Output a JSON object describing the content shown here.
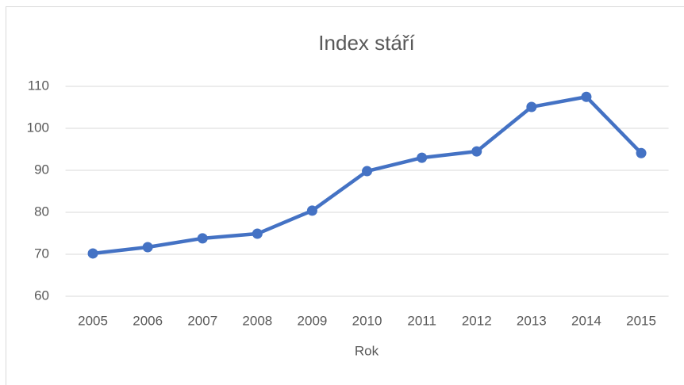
{
  "chart_data": {
    "type": "line",
    "title": "Index stáří",
    "x_label": "Rok",
    "categories": [
      "2005",
      "2006",
      "2007",
      "2008",
      "2009",
      "2010",
      "2011",
      "2012",
      "2013",
      "2014",
      "2015"
    ],
    "values": [
      70.2,
      71.7,
      73.8,
      74.9,
      80.4,
      89.8,
      93.0,
      94.5,
      105.1,
      107.5,
      94.1
    ],
    "color": "#4472c4",
    "ylim": [
      60,
      110
    ],
    "yticks": [
      60,
      70,
      80,
      90,
      100,
      110
    ],
    "grid": true
  }
}
